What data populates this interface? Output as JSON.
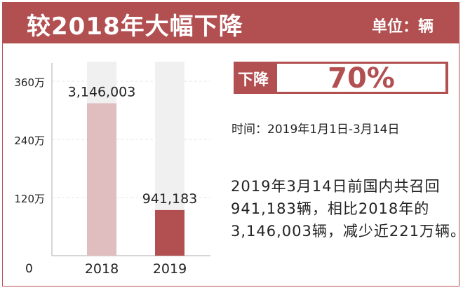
{
  "header": {
    "title": "较2018年大幅下降",
    "unit": "单位：辆"
  },
  "badge": {
    "label": "下降",
    "value": "70%"
  },
  "info": {
    "time": "时间：2019年1月1日-3月14日",
    "desc_lines": [
      "2019年3月14日前国内共召回",
      "941,183辆，相比2018年的",
      "3,146,003辆，减少近221万辆。"
    ]
  },
  "colors": {
    "accent": "#b24f51",
    "bar_2018": "#e0bec0",
    "bar_2019": "#b24f51",
    "bar_background": "#f0f0f0",
    "grid": "#e4e4e4",
    "axis": "#c8c8c8"
  },
  "chart_data": {
    "type": "bar",
    "categories": [
      "2018",
      "2019"
    ],
    "values": [
      3146003,
      941183
    ],
    "data_labels": [
      "3,146,003",
      "941,183"
    ],
    "ylim": [
      0,
      3600000
    ],
    "yticks": [
      0,
      1200000,
      2400000,
      3600000
    ],
    "ytick_labels": [
      "0",
      "120万",
      "240万",
      "360万"
    ],
    "grid": true,
    "title": "",
    "xlabel": "",
    "ylabel": ""
  }
}
